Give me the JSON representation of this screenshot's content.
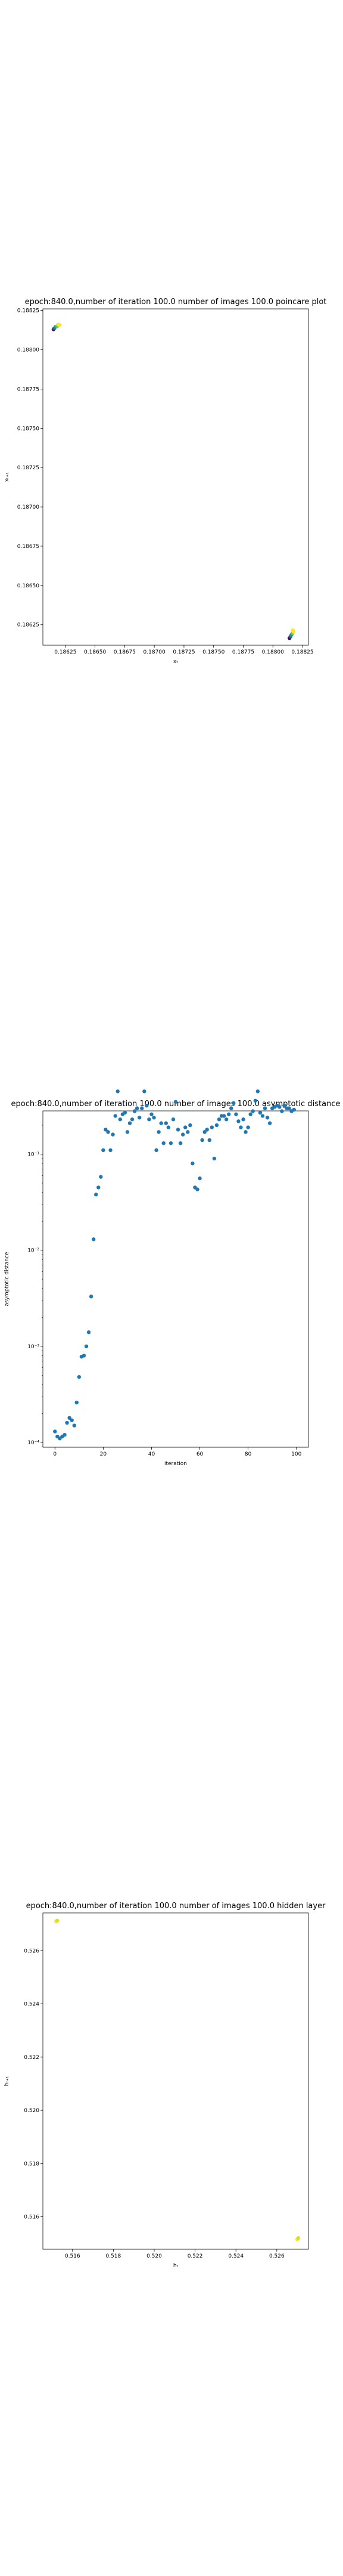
{
  "chart_data": [
    {
      "type": "scatter",
      "title": "epoch:840.0,number of iteration 100.0 number of images 100.0 poincare plot",
      "xlabel": "xₜ",
      "ylabel": "xₜ₊₁",
      "xlim": [
        0.18606,
        0.1883
      ],
      "ylim": [
        0.18612,
        0.18826
      ],
      "xticks": [
        0.18625,
        0.1865,
        0.18675,
        0.187,
        0.18725,
        0.1875,
        0.18775,
        0.188,
        0.18825
      ],
      "xtick_labels": [
        "0.18625",
        "0.18650",
        "0.18675",
        "0.18700",
        "0.18725",
        "0.18750",
        "0.18775",
        "0.18800",
        "0.18825"
      ],
      "yticks": [
        0.18625,
        0.1865,
        0.18675,
        0.187,
        0.18725,
        0.1875,
        0.18775,
        0.188,
        0.18825
      ],
      "ytick_labels": [
        "0.18625",
        "0.18650",
        "0.18675",
        "0.18700",
        "0.18725",
        "0.18750",
        "0.18775",
        "0.18800",
        "0.18825"
      ],
      "points": [
        {
          "x": 0.18615,
          "y": 0.18813,
          "color": "#440154"
        },
        {
          "x": 0.186155,
          "y": 0.188135,
          "color": "#3b528b"
        },
        {
          "x": 0.186165,
          "y": 0.188145,
          "color": "#21918c"
        },
        {
          "x": 0.18618,
          "y": 0.18815,
          "color": "#5ec962"
        },
        {
          "x": 0.18619,
          "y": 0.18816,
          "color": "#fde725"
        },
        {
          "x": 0.1862,
          "y": 0.188158,
          "color": "#fde725"
        },
        {
          "x": 0.18814,
          "y": 0.186165,
          "color": "#440154"
        },
        {
          "x": 0.188148,
          "y": 0.186175,
          "color": "#3b528b"
        },
        {
          "x": 0.188155,
          "y": 0.186185,
          "color": "#21918c"
        },
        {
          "x": 0.188165,
          "y": 0.186195,
          "color": "#5ec962"
        },
        {
          "x": 0.188175,
          "y": 0.186205,
          "color": "#fde725"
        },
        {
          "x": 0.188168,
          "y": 0.186215,
          "color": "#fde725"
        }
      ],
      "grid": false
    },
    {
      "type": "scatter",
      "title": "epoch:840.0,number of iteration 100.0  number of images 100.0 asymptotic distance",
      "xlabel": "iteration",
      "ylabel": "asymptotic distance",
      "yscale": "log",
      "xlim": [
        -5,
        105
      ],
      "ylim_exp": [
        -4.05,
        -0.55
      ],
      "xticks": [
        0,
        20,
        40,
        60,
        80,
        100
      ],
      "xtick_labels": [
        "0",
        "20",
        "40",
        "60",
        "80",
        "100"
      ],
      "yticks_exp": [
        -4,
        -3,
        -2,
        -1
      ],
      "ytick_labels": [
        "10⁻⁴",
        "10⁻³",
        "10⁻²",
        "10⁻¹"
      ],
      "point_color": "#1f77b4",
      "x": [
        0,
        1,
        2,
        3,
        4,
        5,
        6,
        7,
        8,
        9,
        10,
        11,
        12,
        13,
        14,
        15,
        16,
        17,
        18,
        19,
        20,
        21,
        22,
        23,
        24,
        25,
        26,
        27,
        28,
        29,
        30,
        31,
        32,
        33,
        34,
        35,
        36,
        37,
        38,
        39,
        40,
        41,
        42,
        43,
        44,
        45,
        46,
        47,
        48,
        49,
        50,
        51,
        52,
        53,
        54,
        55,
        56,
        57,
        58,
        59,
        60,
        61,
        62,
        63,
        64,
        65,
        66,
        67,
        68,
        69,
        70,
        71,
        72,
        73,
        74,
        75,
        76,
        77,
        78,
        79,
        80,
        81,
        82,
        83,
        84,
        85,
        86,
        87,
        88,
        89,
        90,
        91,
        92,
        93,
        94,
        95,
        96,
        97,
        98,
        99
      ],
      "y": [
        0.00013,
        0.000115,
        0.00011,
        0.000115,
        0.00012,
        0.00016,
        0.00018,
        0.00017,
        0.00015,
        0.00026,
        0.00048,
        0.00078,
        0.0008,
        0.001,
        0.0014,
        0.0033,
        0.013,
        0.038,
        0.045,
        0.058,
        0.11,
        0.18,
        0.17,
        0.11,
        0.16,
        0.25,
        0.45,
        0.23,
        0.26,
        0.27,
        0.17,
        0.21,
        0.23,
        0.28,
        0.3,
        0.24,
        0.3,
        0.45,
        0.32,
        0.23,
        0.26,
        0.24,
        0.11,
        0.17,
        0.21,
        0.13,
        0.21,
        0.19,
        0.13,
        0.23,
        0.35,
        0.18,
        0.13,
        0.16,
        0.19,
        0.17,
        0.2,
        0.08,
        0.045,
        0.043,
        0.056,
        0.14,
        0.17,
        0.18,
        0.14,
        0.19,
        0.09,
        0.2,
        0.23,
        0.25,
        0.25,
        0.23,
        0.26,
        0.3,
        0.34,
        0.26,
        0.22,
        0.19,
        0.23,
        0.17,
        0.19,
        0.26,
        0.28,
        0.36,
        0.45,
        0.27,
        0.25,
        0.3,
        0.24,
        0.21,
        0.3,
        0.31,
        0.32,
        0.31,
        0.28,
        0.32,
        0.3,
        0.3,
        0.28,
        0.29
      ],
      "grid": false
    },
    {
      "type": "scatter",
      "title": "epoch:840.0,number of iteration 100.0  number of images 100.0 hidden layer",
      "xlabel": "hₜ",
      "ylabel": "hₜ₊₁",
      "xlim": [
        0.51455,
        0.52755
      ],
      "ylim": [
        0.51478,
        0.52742
      ],
      "xticks": [
        0.516,
        0.518,
        0.52,
        0.522,
        0.524,
        0.526
      ],
      "xtick_labels": [
        "0.516",
        "0.518",
        "0.520",
        "0.522",
        "0.524",
        "0.526"
      ],
      "yticks": [
        0.516,
        0.518,
        0.52,
        0.522,
        0.524,
        0.526
      ],
      "ytick_labels": [
        "0.516",
        "0.518",
        "0.520",
        "0.522",
        "0.524",
        "0.526"
      ],
      "points": [
        {
          "x": 0.5152,
          "y": 0.5271,
          "color": "#fde725"
        },
        {
          "x": 0.51525,
          "y": 0.52713,
          "color": "#d8e219"
        },
        {
          "x": 0.527,
          "y": 0.51515,
          "color": "#fde725"
        },
        {
          "x": 0.52705,
          "y": 0.5152,
          "color": "#d8e219"
        }
      ],
      "grid": false
    }
  ]
}
